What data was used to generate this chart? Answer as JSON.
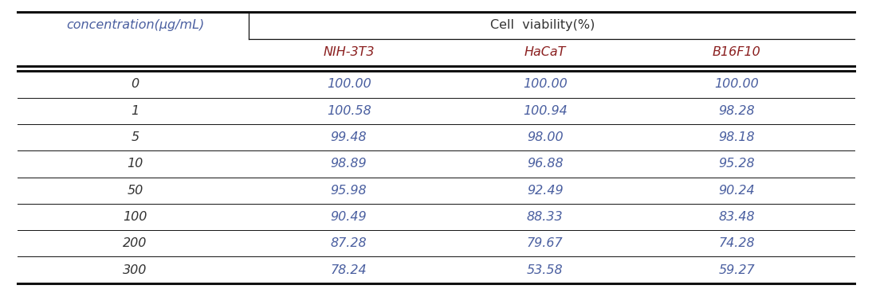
{
  "col_header_main": "Cell  viability(%)",
  "col_header_sub": [
    "NIH-3T3",
    "HaCaT",
    "B16F10"
  ],
  "row_header_label": "concentration(μg/mL)",
  "concentrations": [
    "0",
    "1",
    "5",
    "10",
    "50",
    "100",
    "200",
    "300"
  ],
  "nih3t3": [
    "100.00",
    "100.58",
    "99.48",
    "98.89",
    "95.98",
    "90.49",
    "87.28",
    "78.24"
  ],
  "hacat": [
    "100.00",
    "100.94",
    "98.00",
    "96.88",
    "92.49",
    "88.33",
    "79.67",
    "53.58"
  ],
  "b16f10": [
    "100.00",
    "98.28",
    "98.18",
    "95.28",
    "90.24",
    "83.48",
    "74.28",
    "59.27"
  ],
  "conc_text_color": "#333333",
  "sub_header_color": "#8B2020",
  "data_text_color": "#4A5FA0",
  "main_header_color": "#333333",
  "row_header_color": "#4A5FA0",
  "line_color": "#111111",
  "bg_color": "#FFFFFF",
  "font_size": 11.5,
  "header_font_size": 11.5
}
